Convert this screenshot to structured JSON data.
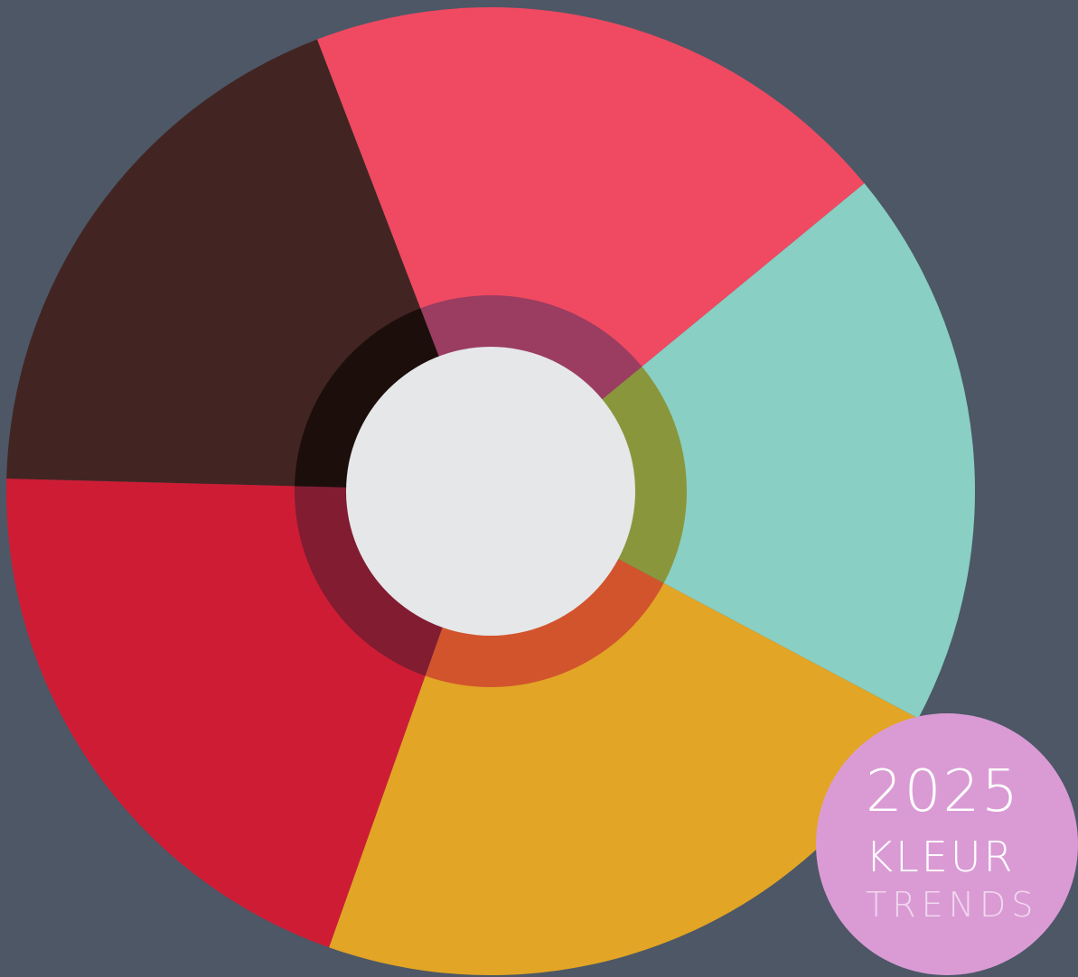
{
  "color_wheel": {
    "background": "#4d5766",
    "center_color": "#e6e7e9",
    "segments": [
      {
        "name": "pink-segment",
        "outer": "#ef4a61",
        "ring": "#9b3c61"
      },
      {
        "name": "teal-segment",
        "outer": "#89cfc3",
        "ring": "#8a963c"
      },
      {
        "name": "yellow-segment",
        "outer": "#e2a525",
        "ring": "#d2542d"
      },
      {
        "name": "red-segment",
        "outer": "#cf1c35",
        "ring": "#811c31"
      },
      {
        "name": "brown-segment",
        "outer": "#422522",
        "ring": "#1c0e0b"
      }
    ]
  },
  "badge": {
    "color": "#da9bd5",
    "year": "2025",
    "title": "KLEUR",
    "subtitle": "TRENDS"
  }
}
